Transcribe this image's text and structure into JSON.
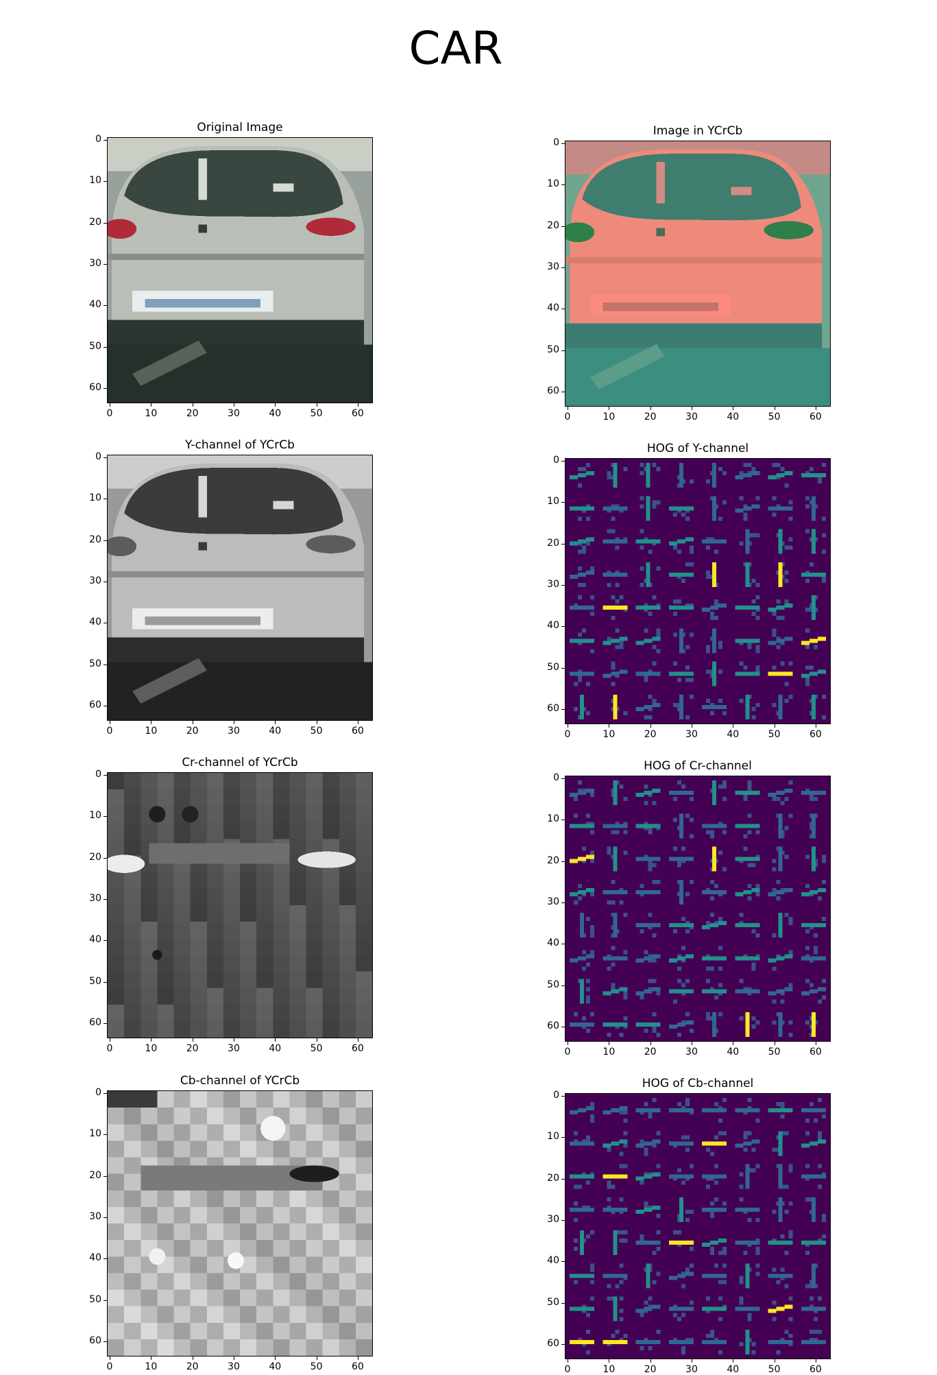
{
  "figure": {
    "suptitle": "CAR"
  },
  "panels": [
    {
      "title": "Original Image",
      "type": "rgb"
    },
    {
      "title": "Image in YCrCb",
      "type": "ycrcb"
    },
    {
      "title": "Y-channel of YCrCb",
      "type": "gray_y"
    },
    {
      "title": "HOG of Y-channel",
      "type": "hog"
    },
    {
      "title": "Cr-channel of YCrCb",
      "type": "gray_cr"
    },
    {
      "title": "HOG of Cr-channel",
      "type": "hog"
    },
    {
      "title": "Cb-channel of YCrCb",
      "type": "gray_cb"
    },
    {
      "title": "HOG of Cb-channel",
      "type": "hog"
    }
  ],
  "axes": {
    "xticks": [
      "0",
      "10",
      "20",
      "30",
      "40",
      "50",
      "60"
    ],
    "yticks": [
      "0",
      "10",
      "20",
      "30",
      "40",
      "50",
      "60"
    ]
  },
  "colors": {
    "hog_background": "#440154",
    "hog_mid": "#21918c",
    "hog_high": "#fde725"
  }
}
